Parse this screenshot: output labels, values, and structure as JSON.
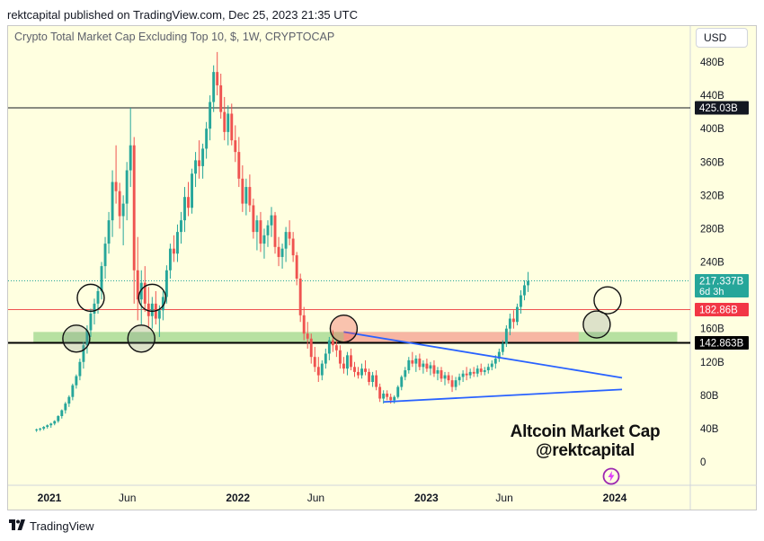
{
  "header": {
    "published_line": "rektcapital published on TradingView.com, Dec 25, 2023 21:35 UTC"
  },
  "toolbar": {
    "currency_label": "USD"
  },
  "footer": {
    "brand": "TradingView",
    "logo_icon": "tradingview-logo-icon"
  },
  "annotations": {
    "title_line1": "Altcoin Market Cap",
    "title_line2": "@rektcapital",
    "watermark_icon": "lightning-badge-icon"
  },
  "colors": {
    "background": "#ffffe0",
    "bull": "#26a69a",
    "bear": "#ef5350",
    "resistance_line": "#ef5350",
    "support_zone": "#b7e1a1",
    "resistance_zone": "#f7b6a3",
    "trendline": "#2962ff",
    "last_price": "#26a69a"
  },
  "chart_data": {
    "type": "candlestick",
    "title": "Crypto Total Market Cap Excluding Top 10, $, 1W, CRYPTOCAP",
    "interval": "1W",
    "y_unit": "B",
    "ylim": [
      0,
      500
    ],
    "y_ticks": [
      "480B",
      "440B",
      "400B",
      "360B",
      "320B",
      "280B",
      "240B",
      "160B",
      "120B",
      "80B",
      "40B",
      "0"
    ],
    "x_tick_labels": [
      {
        "label": "2021",
        "date": "2021-01-01",
        "bold": true
      },
      {
        "label": "Jun",
        "date": "2021-06-01",
        "bold": false
      },
      {
        "label": "2022",
        "date": "2022-01-01",
        "bold": true
      },
      {
        "label": "Jun",
        "date": "2022-06-01",
        "bold": false
      },
      {
        "label": "2023",
        "date": "2023-01-01",
        "bold": true
      },
      {
        "label": "Jun",
        "date": "2023-06-01",
        "bold": false
      },
      {
        "label": "2024",
        "date": "2024-01-01",
        "bold": true
      }
    ],
    "horizontal_lines": [
      {
        "value": 425.03,
        "label": "425.03B",
        "color": "#131722",
        "width": 1
      },
      {
        "value": 182.86,
        "label": "182.86B",
        "color": "#ef5350",
        "width": 1
      },
      {
        "value": 142.863,
        "label": "142.863B",
        "color": "#000000",
        "width": 2
      }
    ],
    "last_price": {
      "value": 217.337,
      "label": "217.337B",
      "countdown": "6d 3h"
    },
    "zones": [
      {
        "name": "support",
        "from": "2020-12-01",
        "to": "2024-05-01",
        "low": 142.863,
        "high": 156,
        "color": "#b7e1a1"
      },
      {
        "name": "resistance",
        "from": "2022-07-25",
        "to": "2023-10-23",
        "low": 142.863,
        "high": 156,
        "color": "#f7b6a3"
      }
    ],
    "trendlines": [
      {
        "from": {
          "date": "2022-07-25",
          "value": 156
        },
        "to": {
          "date": "2024-01-15",
          "value": 101
        }
      },
      {
        "from": {
          "date": "2022-10-10",
          "value": 72
        },
        "to": {
          "date": "2024-01-15",
          "value": 87
        }
      }
    ],
    "circles": [
      {
        "date": "2021-02-22",
        "value": 148,
        "fill": "rgba(120,140,130,0.25)"
      },
      {
        "date": "2021-03-22",
        "value": 197,
        "fill": "none"
      },
      {
        "date": "2021-06-28",
        "value": 148,
        "fill": "rgba(120,140,130,0.25)"
      },
      {
        "date": "2021-07-19",
        "value": 197,
        "fill": "none"
      },
      {
        "date": "2022-07-25",
        "value": 160,
        "fill": "rgba(239,83,80,0.35)"
      },
      {
        "date": "2023-11-27",
        "value": 165,
        "fill": "rgba(120,140,130,0.25)"
      },
      {
        "date": "2023-12-18",
        "value": 194,
        "fill": "none"
      }
    ],
    "candles_weekly_ohlc_start": "2020-12-07",
    "candles": [
      [
        38,
        40,
        36,
        39
      ],
      [
        39,
        41,
        37,
        40
      ],
      [
        40,
        43,
        38,
        42
      ],
      [
        42,
        45,
        40,
        44
      ],
      [
        44,
        47,
        41,
        46
      ],
      [
        46,
        50,
        44,
        49
      ],
      [
        49,
        56,
        47,
        55
      ],
      [
        55,
        63,
        52,
        62
      ],
      [
        62,
        72,
        58,
        70
      ],
      [
        70,
        80,
        66,
        78
      ],
      [
        78,
        94,
        74,
        92
      ],
      [
        92,
        105,
        88,
        103
      ],
      [
        103,
        124,
        98,
        120
      ],
      [
        120,
        144,
        112,
        140
      ],
      [
        140,
        164,
        130,
        158
      ],
      [
        158,
        184,
        150,
        178
      ],
      [
        178,
        196,
        165,
        190
      ],
      [
        190,
        210,
        178,
        205
      ],
      [
        205,
        240,
        195,
        235
      ],
      [
        235,
        270,
        220,
        262
      ],
      [
        262,
        300,
        250,
        290
      ],
      [
        290,
        350,
        270,
        336
      ],
      [
        336,
        380,
        310,
        325
      ],
      [
        325,
        335,
        280,
        295
      ],
      [
        295,
        320,
        260,
        310
      ],
      [
        310,
        360,
        290,
        350
      ],
      [
        350,
        425,
        330,
        380
      ],
      [
        380,
        390,
        190,
        230
      ],
      [
        230,
        270,
        170,
        195
      ],
      [
        195,
        230,
        165,
        215
      ],
      [
        215,
        235,
        180,
        190
      ],
      [
        190,
        210,
        160,
        175
      ],
      [
        175,
        198,
        160,
        190
      ],
      [
        190,
        205,
        165,
        172
      ],
      [
        172,
        188,
        150,
        182
      ],
      [
        182,
        205,
        170,
        198
      ],
      [
        198,
        236,
        190,
        230
      ],
      [
        230,
        262,
        220,
        256
      ],
      [
        256,
        272,
        240,
        250
      ],
      [
        250,
        285,
        240,
        276
      ],
      [
        276,
        300,
        262,
        290
      ],
      [
        290,
        330,
        276,
        318
      ],
      [
        318,
        336,
        295,
        305
      ],
      [
        305,
        352,
        298,
        346
      ],
      [
        346,
        372,
        330,
        362
      ],
      [
        362,
        386,
        340,
        355
      ],
      [
        355,
        382,
        340,
        376
      ],
      [
        376,
        408,
        364,
        400
      ],
      [
        400,
        440,
        386,
        432
      ],
      [
        432,
        476,
        420,
        468
      ],
      [
        468,
        492,
        440,
        452
      ],
      [
        452,
        466,
        412,
        420
      ],
      [
        420,
        438,
        386,
        396
      ],
      [
        396,
        428,
        380,
        418
      ],
      [
        418,
        430,
        380,
        386
      ],
      [
        386,
        404,
        360,
        372
      ],
      [
        372,
        390,
        330,
        340
      ],
      [
        340,
        356,
        300,
        310
      ],
      [
        310,
        340,
        296,
        330
      ],
      [
        330,
        345,
        300,
        308
      ],
      [
        308,
        316,
        268,
        276
      ],
      [
        276,
        296,
        254,
        290
      ],
      [
        290,
        300,
        252,
        262
      ],
      [
        262,
        280,
        244,
        272
      ],
      [
        272,
        290,
        258,
        284
      ],
      [
        284,
        306,
        270,
        296
      ],
      [
        296,
        300,
        250,
        258
      ],
      [
        258,
        270,
        235,
        246
      ],
      [
        246,
        262,
        232,
        256
      ],
      [
        256,
        282,
        240,
        276
      ],
      [
        276,
        290,
        260,
        268
      ],
      [
        268,
        276,
        240,
        248
      ],
      [
        248,
        252,
        212,
        220
      ],
      [
        220,
        226,
        168,
        176
      ],
      [
        176,
        186,
        146,
        154
      ],
      [
        154,
        168,
        136,
        148
      ],
      [
        148,
        154,
        118,
        126
      ],
      [
        126,
        138,
        108,
        114
      ],
      [
        114,
        126,
        96,
        104
      ],
      [
        104,
        122,
        98,
        118
      ],
      [
        118,
        136,
        112,
        130
      ],
      [
        130,
        150,
        122,
        146
      ],
      [
        146,
        158,
        132,
        140
      ],
      [
        140,
        146,
        126,
        134
      ],
      [
        134,
        140,
        112,
        118
      ],
      [
        118,
        126,
        106,
        112
      ],
      [
        112,
        132,
        104,
        128
      ],
      [
        128,
        136,
        110,
        114
      ],
      [
        114,
        120,
        102,
        108
      ],
      [
        108,
        114,
        100,
        104
      ],
      [
        104,
        118,
        100,
        112
      ],
      [
        112,
        122,
        104,
        108
      ],
      [
        108,
        112,
        92,
        96
      ],
      [
        96,
        108,
        90,
        104
      ],
      [
        104,
        110,
        86,
        90
      ],
      [
        90,
        94,
        72,
        76
      ],
      [
        76,
        86,
        70,
        82
      ],
      [
        82,
        86,
        74,
        78
      ],
      [
        78,
        82,
        70,
        74
      ],
      [
        74,
        80,
        70,
        78
      ],
      [
        78,
        92,
        76,
        90
      ],
      [
        90,
        104,
        86,
        102
      ],
      [
        102,
        114,
        98,
        110
      ],
      [
        110,
        126,
        106,
        122
      ],
      [
        122,
        132,
        114,
        118
      ],
      [
        118,
        128,
        108,
        124
      ],
      [
        124,
        130,
        110,
        114
      ],
      [
        114,
        122,
        106,
        118
      ],
      [
        118,
        124,
        108,
        112
      ],
      [
        112,
        120,
        104,
        116
      ],
      [
        116,
        122,
        102,
        106
      ],
      [
        106,
        114,
        98,
        110
      ],
      [
        110,
        114,
        96,
        100
      ],
      [
        100,
        108,
        92,
        104
      ],
      [
        104,
        108,
        94,
        98
      ],
      [
        98,
        104,
        84,
        90
      ],
      [
        90,
        102,
        86,
        98
      ],
      [
        98,
        106,
        92,
        102
      ],
      [
        102,
        110,
        96,
        106
      ],
      [
        106,
        114,
        98,
        104
      ],
      [
        104,
        112,
        100,
        108
      ],
      [
        108,
        114,
        102,
        106
      ],
      [
        106,
        116,
        102,
        112
      ],
      [
        112,
        118,
        104,
        108
      ],
      [
        108,
        114,
        104,
        110
      ],
      [
        110,
        118,
        106,
        114
      ],
      [
        114,
        122,
        110,
        118
      ],
      [
        118,
        128,
        112,
        124
      ],
      [
        124,
        136,
        120,
        132
      ],
      [
        132,
        146,
        128,
        142
      ],
      [
        142,
        164,
        138,
        160
      ],
      [
        160,
        178,
        152,
        172
      ],
      [
        172,
        182,
        160,
        168
      ],
      [
        168,
        190,
        164,
        186
      ],
      [
        186,
        206,
        178,
        200
      ],
      [
        200,
        218,
        194,
        212
      ],
      [
        212,
        228,
        204,
        217
      ]
    ]
  }
}
